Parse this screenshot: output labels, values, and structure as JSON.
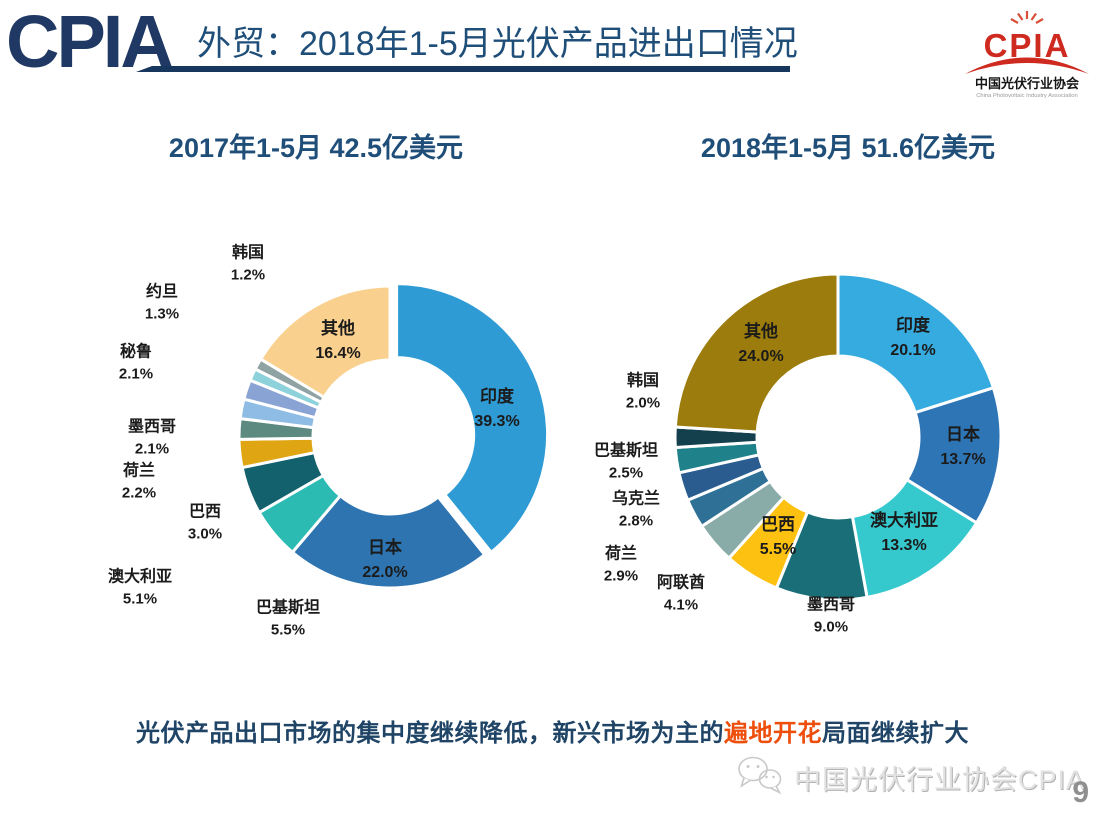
{
  "header": {
    "wordmark": "CPIA",
    "title": "外贸：2018年1-5月光伏产品进出口情况"
  },
  "logo": {
    "cpia": "CPIA",
    "org_cn": "中国光伏行业协会",
    "org_en": "China Photovoltaic Industry Association",
    "brand_red": "#CE2A20"
  },
  "footer": {
    "pre": "光伏产品出口市场的集中度继续降低，新兴市场为主的",
    "highlight": "遍地开花",
    "post": "局面继续扩大",
    "highlight_color": "#EE4E0C",
    "text_color": "#1F4466"
  },
  "watermark": {
    "text": "中国光伏行业协会CPIA"
  },
  "page_number": "9",
  "colors": {
    "title_navy": "#1F4E79",
    "underline_navy": "#17365D",
    "wordmark_navy": "#1F3864"
  },
  "chart_data": [
    {
      "type": "donut",
      "title": "2017年1-5月 42.5亿美元",
      "value_format": "percent",
      "slices": [
        {
          "name": "印度",
          "value": 39.3,
          "color": "#2E9BD5",
          "exploded": true
        },
        {
          "name": "日本",
          "value": 22.0,
          "color": "#2D74B0"
        },
        {
          "name": "巴基斯坦",
          "value": 5.5,
          "color": "#2BBBB3"
        },
        {
          "name": "澳大利亚",
          "value": 5.1,
          "color": "#14616E"
        },
        {
          "name": "巴西",
          "value": 3.0,
          "color": "#DFA512"
        },
        {
          "name": "荷兰",
          "value": 2.2,
          "color": "#5C8A80"
        },
        {
          "name": "墨西哥",
          "value": 2.1,
          "color": "#8FBCE4"
        },
        {
          "name": "秘鲁",
          "value": 2.1,
          "color": "#89A4D4"
        },
        {
          "name": "约旦",
          "value": 1.3,
          "color": "#8DD2DB"
        },
        {
          "name": "韩国",
          "value": 1.2,
          "color": "#90A3A4"
        },
        {
          "name": "其他",
          "value": 16.4,
          "color": "#FAD08E"
        }
      ]
    },
    {
      "type": "donut",
      "title": "2018年1-5月 51.6亿美元",
      "value_format": "percent",
      "slices": [
        {
          "name": "印度",
          "value": 20.1,
          "color": "#35ABE0"
        },
        {
          "name": "日本",
          "value": 13.7,
          "color": "#2E75B6"
        },
        {
          "name": "澳大利亚",
          "value": 13.3,
          "color": "#35C8CD"
        },
        {
          "name": "墨西哥",
          "value": 9.0,
          "color": "#1A6E78"
        },
        {
          "name": "巴西",
          "value": 5.5,
          "color": "#FDC112"
        },
        {
          "name": "阿联酋",
          "value": 4.1,
          "color": "#8AACA9"
        },
        {
          "name": "荷兰",
          "value": 2.9,
          "color": "#2E7096"
        },
        {
          "name": "乌克兰",
          "value": 2.8,
          "color": "#2A5C8F"
        },
        {
          "name": "巴基斯坦",
          "value": 2.5,
          "color": "#1F828A"
        },
        {
          "name": "韩国",
          "value": 2.0,
          "color": "#143F4D"
        },
        {
          "name": "其他",
          "value": 24.0,
          "color": "#9C7C0C"
        }
      ]
    }
  ]
}
